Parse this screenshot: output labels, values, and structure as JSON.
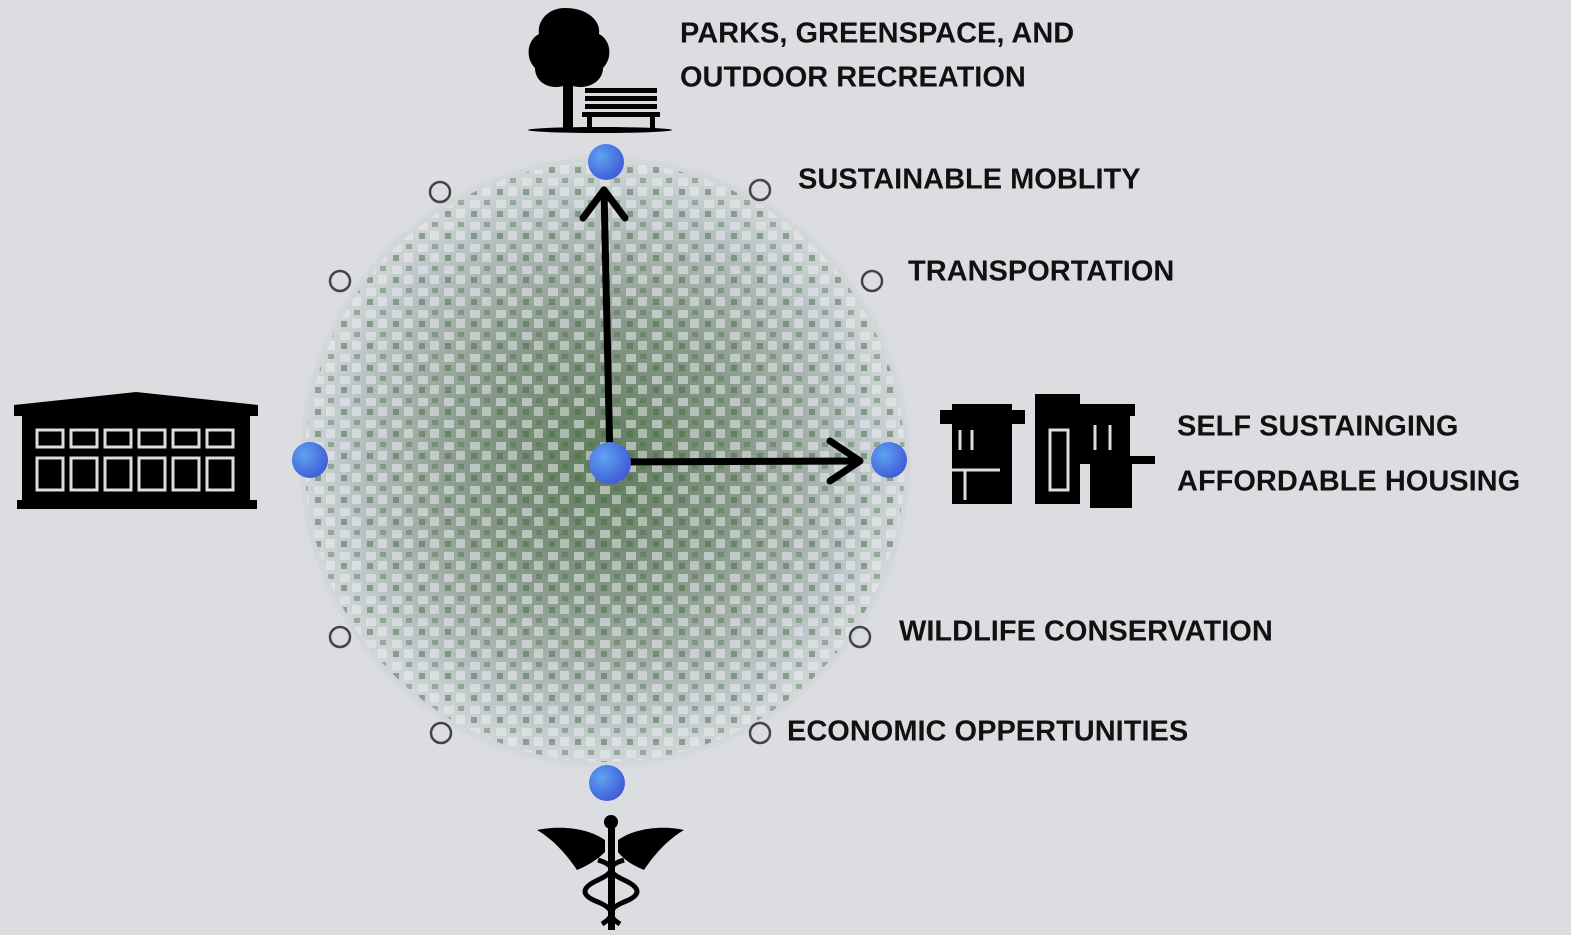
{
  "nodes": [
    {
      "label": [
        "PARKS, GREENSPACE, AND",
        "OUTDOOR RECREATION"
      ]
    },
    {
      "label": [
        "SUSTAINABLE MOBLITY"
      ]
    },
    {
      "label": [
        "TRANSPORTATION"
      ]
    },
    {
      "label": [
        "SELF SUSTAINGING",
        "AFFORDABLE HOUSING"
      ]
    },
    {
      "label": [
        "WILDLIFE CONSERVATION"
      ]
    },
    {
      "label": [
        "ECONOMIC OPPERTUNITIES"
      ]
    }
  ]
}
